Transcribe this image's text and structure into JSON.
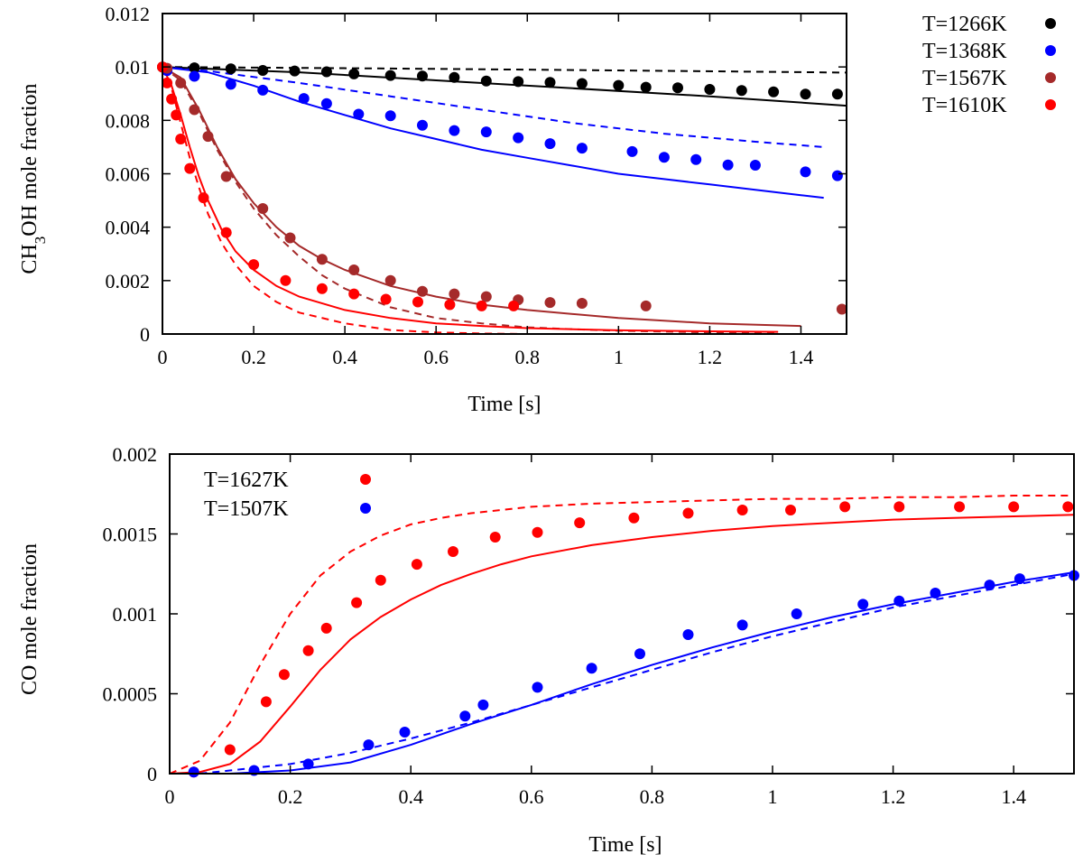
{
  "chart_data": [
    {
      "type": "scatter",
      "title": "",
      "xlabel": "Time [s]",
      "ylabel": "CH3OH mole fraction",
      "ylabel_parts": {
        "pre": "CH",
        "sub": "3",
        "post": "OH mole fraction"
      },
      "xlim": [
        0,
        1.5
      ],
      "ylim": [
        0,
        0.012
      ],
      "x_ticks": [
        0,
        0.2,
        0.4,
        0.6,
        0.8,
        1,
        1.2,
        1.4
      ],
      "x_tick_labels": [
        "0",
        "0.2",
        "0.4",
        "0.6",
        "0.8",
        "1",
        "1.2",
        "1.4"
      ],
      "y_ticks": [
        0,
        0.002,
        0.004,
        0.006,
        0.008,
        0.01,
        0.012
      ],
      "y_tick_labels": [
        "0",
        "0.002",
        "0.004",
        "0.006",
        "0.008",
        "0.01",
        "0.012"
      ],
      "legend_position": "outside right",
      "legend_style": "markers",
      "grid": false,
      "series": [
        {
          "name": "T=1266K",
          "color": "#000000",
          "points": {
            "x": [
              0,
              0.07,
              0.15,
              0.22,
              0.29,
              0.36,
              0.42,
              0.5,
              0.57,
              0.64,
              0.71,
              0.78,
              0.85,
              0.92,
              1.0,
              1.06,
              1.13,
              1.2,
              1.27,
              1.34,
              1.41,
              1.48
            ],
            "y": [
              0.01,
              0.00997,
              0.00993,
              0.00987,
              0.00985,
              0.00982,
              0.00974,
              0.00968,
              0.00966,
              0.00961,
              0.00947,
              0.00945,
              0.00942,
              0.00938,
              0.00931,
              0.00924,
              0.00922,
              0.00916,
              0.00912,
              0.00907,
              0.00898,
              0.00898
            ]
          },
          "solid": {
            "x": [
              0,
              0.3,
              0.6,
              0.9,
              1.2,
              1.5
            ],
            "y": [
              0.01,
              0.0098,
              0.0095,
              0.0092,
              0.0089,
              0.00855
            ]
          },
          "dashed": {
            "x": [
              0,
              0.5,
              1.0,
              1.5
            ],
            "y": [
              0.01,
              0.00994,
              0.00987,
              0.00979
            ]
          }
        },
        {
          "name": "T=1368K",
          "color": "#0000ff",
          "points": {
            "x": [
              0.01,
              0.07,
              0.15,
              0.22,
              0.31,
              0.36,
              0.43,
              0.5,
              0.57,
              0.64,
              0.71,
              0.78,
              0.85,
              0.92,
              1.03,
              1.1,
              1.17,
              1.24,
              1.3,
              1.41,
              1.48
            ],
            "y": [
              0.00986,
              0.00965,
              0.00935,
              0.00913,
              0.00882,
              0.00863,
              0.00823,
              0.00817,
              0.00782,
              0.00762,
              0.00757,
              0.00735,
              0.00713,
              0.00696,
              0.00683,
              0.00662,
              0.00653,
              0.00633,
              0.00632,
              0.00607,
              0.00593
            ]
          },
          "solid": {
            "x": [
              0,
              0.1,
              0.2,
              0.3,
              0.4,
              0.5,
              0.6,
              0.7,
              0.8,
              0.9,
              1.0,
              1.1,
              1.2,
              1.3,
              1.4,
              1.45
            ],
            "y": [
              0.01,
              0.0098,
              0.0093,
              0.0087,
              0.0082,
              0.0077,
              0.0073,
              0.0069,
              0.0066,
              0.0063,
              0.006,
              0.0058,
              0.0056,
              0.0054,
              0.0052,
              0.0051
            ]
          },
          "dashed": {
            "x": [
              0,
              0.1,
              0.3,
              0.5,
              0.7,
              0.9,
              1.1,
              1.3,
              1.45
            ],
            "y": [
              0.01,
              0.00985,
              0.0094,
              0.0089,
              0.0084,
              0.0079,
              0.0075,
              0.0072,
              0.007
            ]
          }
        },
        {
          "name": "T=1567K",
          "color": "#a52a2a",
          "points": {
            "x": [
              0,
              0.01,
              0.04,
              0.07,
              0.1,
              0.14,
              0.22,
              0.28,
              0.35,
              0.42,
              0.5,
              0.57,
              0.64,
              0.71,
              0.78,
              0.85,
              0.92,
              1.06,
              1.49
            ],
            "y": [
              0.01,
              0.00995,
              0.0094,
              0.0084,
              0.0074,
              0.0059,
              0.0047,
              0.0036,
              0.0028,
              0.0024,
              0.002,
              0.0016,
              0.0015,
              0.0014,
              0.00128,
              0.00118,
              0.00115,
              0.00105,
              0.00093
            ]
          },
          "solid": {
            "x": [
              0,
              0.04,
              0.08,
              0.12,
              0.16,
              0.2,
              0.25,
              0.3,
              0.35,
              0.4,
              0.5,
              0.6,
              0.7,
              0.8,
              1.0,
              1.2,
              1.4
            ],
            "y": [
              0.01,
              0.0096,
              0.0084,
              0.007,
              0.0058,
              0.0049,
              0.004,
              0.0033,
              0.0028,
              0.0024,
              0.0018,
              0.0014,
              0.0011,
              0.0009,
              0.0006,
              0.0004,
              0.0003
            ]
          },
          "dashed": {
            "x": [
              0,
              0.04,
              0.08,
              0.12,
              0.16,
              0.2,
              0.25,
              0.3,
              0.35,
              0.4,
              0.5,
              0.6,
              0.7,
              0.8,
              0.9,
              1.0,
              1.2,
              1.35
            ],
            "y": [
              0.01,
              0.0095,
              0.0083,
              0.0069,
              0.0057,
              0.0047,
              0.0037,
              0.0029,
              0.0022,
              0.0017,
              0.001,
              0.0006,
              0.0004,
              0.00025,
              0.00018,
              0.00012,
              6e-05,
              4e-05
            ]
          }
        },
        {
          "name": "T=1610K",
          "color": "#ff0000",
          "points": {
            "x": [
              0,
              0.01,
              0.02,
              0.03,
              0.04,
              0.06,
              0.09,
              0.14,
              0.2,
              0.27,
              0.35,
              0.42,
              0.49,
              0.56,
              0.63,
              0.7,
              0.77
            ],
            "y": [
              0.01,
              0.0094,
              0.0088,
              0.0082,
              0.0073,
              0.0062,
              0.0051,
              0.0038,
              0.0026,
              0.002,
              0.0017,
              0.0015,
              0.0013,
              0.0012,
              0.0011,
              0.00105,
              0.00105
            ]
          },
          "solid": {
            "x": [
              0,
              0.02,
              0.04,
              0.06,
              0.08,
              0.1,
              0.13,
              0.16,
              0.2,
              0.25,
              0.3,
              0.4,
              0.5,
              0.6,
              0.7,
              0.8,
              1.0,
              1.2,
              1.35
            ],
            "y": [
              0.01,
              0.0093,
              0.0082,
              0.007,
              0.0059,
              0.005,
              0.0039,
              0.0031,
              0.0024,
              0.0018,
              0.0014,
              0.0009,
              0.0006,
              0.0004,
              0.0003,
              0.00022,
              0.00014,
              0.0001,
              8e-05
            ]
          },
          "dashed": {
            "x": [
              0,
              0.02,
              0.04,
              0.06,
              0.08,
              0.1,
              0.13,
              0.16,
              0.2,
              0.25,
              0.3,
              0.4,
              0.5,
              0.6,
              0.7,
              0.8
            ],
            "y": [
              0.01,
              0.0092,
              0.0079,
              0.0066,
              0.0055,
              0.0045,
              0.0034,
              0.0026,
              0.0018,
              0.0012,
              0.0008,
              0.0004,
              0.00015,
              6e-05,
              2e-05,
              0
            ]
          }
        }
      ]
    },
    {
      "type": "scatter",
      "title": "",
      "xlabel": "Time [s]",
      "ylabel": "CO mole fraction",
      "xlim": [
        0,
        1.5
      ],
      "ylim": [
        0,
        0.002
      ],
      "x_ticks": [
        0,
        0.2,
        0.4,
        0.6,
        0.8,
        1,
        1.2,
        1.4
      ],
      "x_tick_labels": [
        "0",
        "0.2",
        "0.4",
        "0.6",
        "0.8",
        "1",
        "1.2",
        "1.4"
      ],
      "y_ticks": [
        0,
        0.0005,
        0.001,
        0.0015,
        0.002
      ],
      "y_tick_labels": [
        "0",
        "0.0005",
        "0.001",
        "0.0015",
        "0.002"
      ],
      "legend_position": "top-left",
      "legend_style": "markers",
      "grid": false,
      "series": [
        {
          "name": "T=1627K",
          "color": "#ff0000",
          "points": {
            "x": [
              0.04,
              0.1,
              0.16,
              0.19,
              0.23,
              0.26,
              0.31,
              0.35,
              0.41,
              0.47,
              0.54,
              0.61,
              0.68,
              0.77,
              0.86,
              0.95,
              1.03,
              1.12,
              1.21,
              1.31,
              1.4,
              1.49
            ],
            "y": [
              1e-05,
              0.00015,
              0.00045,
              0.00062,
              0.00077,
              0.00091,
              0.00107,
              0.00121,
              0.00131,
              0.00139,
              0.00148,
              0.00151,
              0.00157,
              0.0016,
              0.00163,
              0.00165,
              0.00165,
              0.00167,
              0.00167,
              0.00167,
              0.00167,
              0.00167
            ]
          },
          "solid": {
            "x": [
              0,
              0.05,
              0.1,
              0.15,
              0.2,
              0.25,
              0.3,
              0.35,
              0.4,
              0.45,
              0.5,
              0.55,
              0.6,
              0.7,
              0.8,
              0.9,
              1.0,
              1.1,
              1.2,
              1.3,
              1.4,
              1.5
            ],
            "y": [
              0,
              1e-05,
              6e-05,
              0.0002,
              0.00042,
              0.00065,
              0.00084,
              0.00098,
              0.00109,
              0.00118,
              0.00125,
              0.00131,
              0.00136,
              0.00143,
              0.00148,
              0.00152,
              0.00155,
              0.00157,
              0.00159,
              0.0016,
              0.00161,
              0.00162
            ]
          },
          "dashed": {
            "x": [
              0,
              0.05,
              0.1,
              0.15,
              0.2,
              0.25,
              0.3,
              0.35,
              0.4,
              0.45,
              0.5,
              0.6,
              0.7,
              0.8,
              0.9,
              1.0,
              1.1,
              1.2,
              1.3,
              1.4,
              1.5
            ],
            "y": [
              0,
              8e-05,
              0.00032,
              0.00068,
              0.001,
              0.00124,
              0.00139,
              0.00149,
              0.00156,
              0.0016,
              0.00163,
              0.00167,
              0.00169,
              0.0017,
              0.00171,
              0.00172,
              0.00172,
              0.00173,
              0.00173,
              0.00174,
              0.00174
            ]
          }
        },
        {
          "name": "T=1507K",
          "color": "#0000ff",
          "points": {
            "x": [
              0.04,
              0.14,
              0.23,
              0.33,
              0.39,
              0.49,
              0.52,
              0.61,
              0.7,
              0.78,
              0.86,
              0.95,
              1.04,
              1.15,
              1.21,
              1.27,
              1.36,
              1.41,
              1.5
            ],
            "y": [
              1e-05,
              2e-05,
              6e-05,
              0.00018,
              0.00026,
              0.00036,
              0.00043,
              0.00054,
              0.00066,
              0.00075,
              0.00087,
              0.00093,
              0.001,
              0.00106,
              0.00108,
              0.00113,
              0.00118,
              0.00122,
              0.00124
            ]
          },
          "solid": {
            "x": [
              0.1,
              0.2,
              0.3,
              0.4,
              0.5,
              0.6,
              0.7,
              0.8,
              0.9,
              1.0,
              1.1,
              1.2,
              1.3,
              1.4,
              1.5
            ],
            "y": [
              0,
              2e-05,
              7e-05,
              0.00018,
              0.00031,
              0.00043,
              0.00056,
              0.00068,
              0.00079,
              0.00089,
              0.00098,
              0.00106,
              0.00113,
              0.0012,
              0.00126
            ]
          },
          "dashed": {
            "x": [
              0.05,
              0.1,
              0.2,
              0.3,
              0.4,
              0.5,
              0.6,
              0.7,
              0.8,
              0.9,
              1.0,
              1.1,
              1.2,
              1.3,
              1.4,
              1.5
            ],
            "y": [
              0,
              2e-05,
              6e-05,
              0.00013,
              0.00022,
              0.00032,
              0.00043,
              0.00054,
              0.00065,
              0.00076,
              0.00086,
              0.00095,
              0.00104,
              0.00111,
              0.00118,
              0.00125
            ]
          }
        }
      ]
    }
  ]
}
